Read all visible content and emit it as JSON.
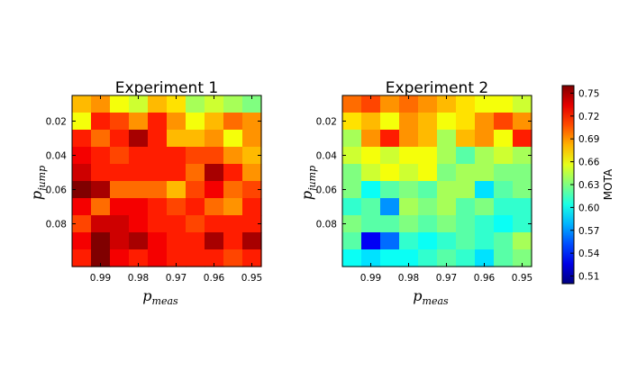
{
  "chart_data": {
    "type": "heatmap",
    "colormap": "jet",
    "vmin": 0.5,
    "vmax": 0.76,
    "panels": [
      {
        "title": "Experiment 1",
        "xlabel_base": "p",
        "xlabel_sub": "meas",
        "ylabel_base": "p",
        "ylabel_sub": "jump",
        "xticks": [
          "0.99",
          "0.98",
          "0.97",
          "0.96",
          "0.95"
        ],
        "yticks": [
          "0.02",
          "0.04",
          "0.06",
          "0.08"
        ],
        "values": [
          [
            0.68,
            0.69,
            0.66,
            0.65,
            0.68,
            0.67,
            0.64,
            0.65,
            0.64,
            0.63
          ],
          [
            0.66,
            0.72,
            0.71,
            0.69,
            0.72,
            0.69,
            0.66,
            0.68,
            0.7,
            0.69
          ],
          [
            0.72,
            0.7,
            0.72,
            0.75,
            0.72,
            0.68,
            0.68,
            0.69,
            0.66,
            0.69
          ],
          [
            0.73,
            0.72,
            0.71,
            0.72,
            0.72,
            0.72,
            0.71,
            0.71,
            0.69,
            0.68
          ],
          [
            0.74,
            0.72,
            0.72,
            0.72,
            0.72,
            0.72,
            0.7,
            0.75,
            0.72,
            0.69
          ],
          [
            0.76,
            0.75,
            0.7,
            0.7,
            0.7,
            0.68,
            0.71,
            0.73,
            0.7,
            0.71
          ],
          [
            0.73,
            0.7,
            0.73,
            0.73,
            0.72,
            0.71,
            0.72,
            0.7,
            0.69,
            0.72
          ],
          [
            0.71,
            0.74,
            0.74,
            0.73,
            0.72,
            0.72,
            0.71,
            0.72,
            0.72,
            0.72
          ],
          [
            0.73,
            0.76,
            0.74,
            0.75,
            0.73,
            0.72,
            0.72,
            0.75,
            0.72,
            0.75
          ],
          [
            0.72,
            0.76,
            0.73,
            0.72,
            0.73,
            0.72,
            0.72,
            0.72,
            0.71,
            0.72
          ]
        ]
      },
      {
        "title": "Experiment 2",
        "xlabel_base": "p",
        "xlabel_sub": "meas",
        "ylabel_base": "p",
        "ylabel_sub": "jump",
        "xticks": [
          "0.99",
          "0.98",
          "0.97",
          "0.96",
          "0.95"
        ],
        "yticks": [
          "0.02",
          "0.04",
          "0.06",
          "0.08"
        ],
        "values": [
          [
            0.7,
            0.71,
            0.69,
            0.7,
            0.69,
            0.68,
            0.67,
            0.66,
            0.66,
            0.65
          ],
          [
            0.67,
            0.68,
            0.66,
            0.69,
            0.68,
            0.66,
            0.67,
            0.69,
            0.71,
            0.69
          ],
          [
            0.64,
            0.69,
            0.72,
            0.69,
            0.68,
            0.64,
            0.68,
            0.69,
            0.66,
            0.72
          ],
          [
            0.65,
            0.66,
            0.65,
            0.66,
            0.66,
            0.64,
            0.62,
            0.64,
            0.65,
            0.64
          ],
          [
            0.63,
            0.65,
            0.66,
            0.65,
            0.66,
            0.63,
            0.64,
            0.64,
            0.63,
            0.63
          ],
          [
            0.63,
            0.6,
            0.62,
            0.63,
            0.62,
            0.64,
            0.64,
            0.59,
            0.62,
            0.63
          ],
          [
            0.61,
            0.62,
            0.57,
            0.64,
            0.63,
            0.64,
            0.62,
            0.63,
            0.61,
            0.61
          ],
          [
            0.63,
            0.62,
            0.62,
            0.63,
            0.62,
            0.63,
            0.62,
            0.61,
            0.6,
            0.61
          ],
          [
            0.62,
            0.53,
            0.56,
            0.61,
            0.6,
            0.61,
            0.62,
            0.61,
            0.62,
            0.64
          ],
          [
            0.6,
            0.59,
            0.6,
            0.6,
            0.61,
            0.62,
            0.61,
            0.59,
            0.62,
            0.63
          ]
        ]
      }
    ],
    "colorbar": {
      "label": "MOTA",
      "ticks": [
        "0.75",
        "0.72",
        "0.69",
        "0.66",
        "0.63",
        "0.60",
        "0.57",
        "0.54",
        "0.51"
      ]
    }
  }
}
